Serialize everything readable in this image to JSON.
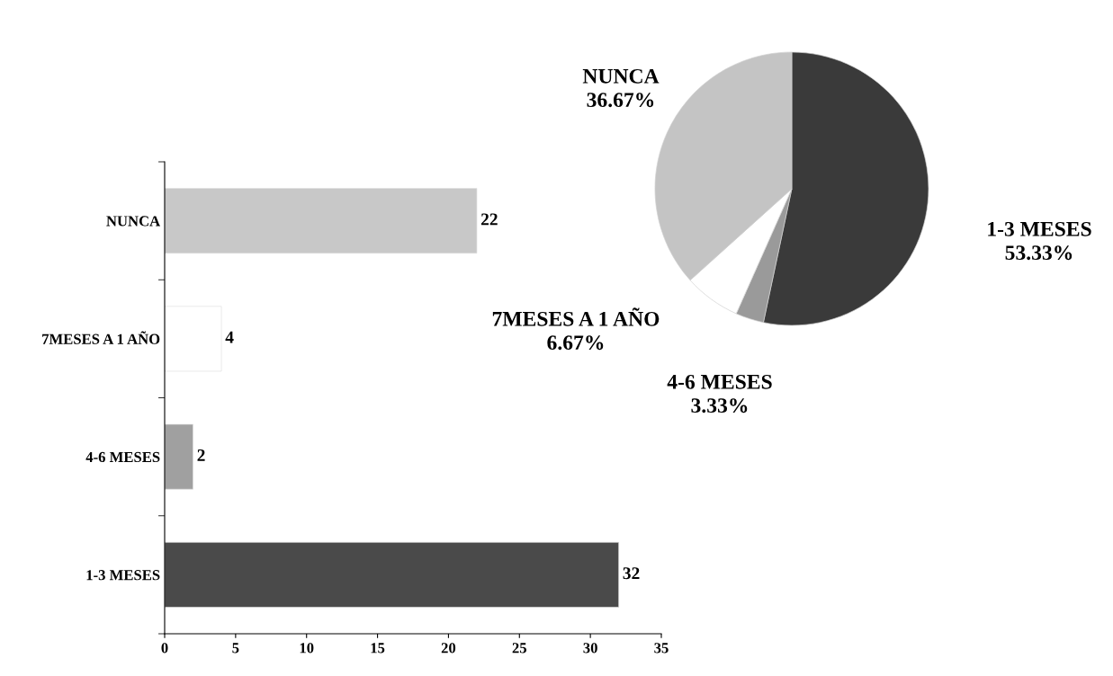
{
  "chart_data": [
    {
      "type": "bar",
      "orientation": "horizontal",
      "categories": [
        "NUNCA",
        "7MESES A 1 AÑO",
        "4-6 MESES",
        "1-3 MESES"
      ],
      "values": [
        22,
        4,
        2,
        32
      ],
      "colors": [
        "#c8c8c8",
        "#ffffff",
        "#a0a0a0",
        "#4a4a4a"
      ],
      "xlim": [
        0,
        35
      ],
      "xticks": [
        0,
        5,
        10,
        15,
        20,
        25,
        30,
        35
      ],
      "data_labels": true
    },
    {
      "type": "pie",
      "categories": [
        "1-3 MESES",
        "4-6 MESES",
        "7MESES A 1 AÑO",
        "NUNCA"
      ],
      "values": [
        53.33,
        3.33,
        6.67,
        36.67
      ],
      "value_labels": [
        "53.33%",
        "3.33%",
        "6.67%",
        "36.67%"
      ],
      "colors": [
        "#3a3a3a",
        "#9a9a9a",
        "#ffffff",
        "#c4c4c4"
      ]
    }
  ]
}
